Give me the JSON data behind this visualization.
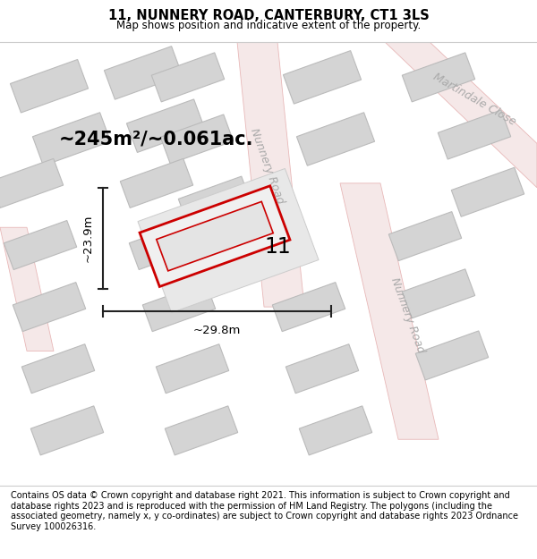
{
  "title": "11, NUNNERY ROAD, CANTERBURY, CT1 3LS",
  "subtitle": "Map shows position and indicative extent of the property.",
  "footer": "Contains OS data © Crown copyright and database right 2021. This information is subject to Crown copyright and database rights 2023 and is reproduced with the permission of HM Land Registry. The polygons (including the associated geometry, namely x, y co-ordinates) are subject to Crown copyright and database rights 2023 Ordnance Survey 100026316.",
  "area_text": "~245m²/~0.061ac.",
  "number_label": "11",
  "width_label": "~29.8m",
  "height_label": "~23.9m",
  "map_bg": "#f0efee",
  "road_fill": "#f5e8e8",
  "road_edge": "#e8b8b8",
  "building_fill": "#d4d4d4",
  "building_edge": "#bbbbbb",
  "plot_fill": "#e8e8e8",
  "plot_edge": "#cccccc",
  "red_fill": "#f0f0f0",
  "red_edge": "#cc0000",
  "street_color": "#aaaaaa",
  "dim_color": "#222222",
  "white": "#ffffff",
  "title_fontsize": 10.5,
  "subtitle_fontsize": 8.5,
  "footer_fontsize": 7.0,
  "area_fontsize": 15,
  "number_fontsize": 17,
  "dim_fontsize": 9.5,
  "street_fontsize": 9
}
